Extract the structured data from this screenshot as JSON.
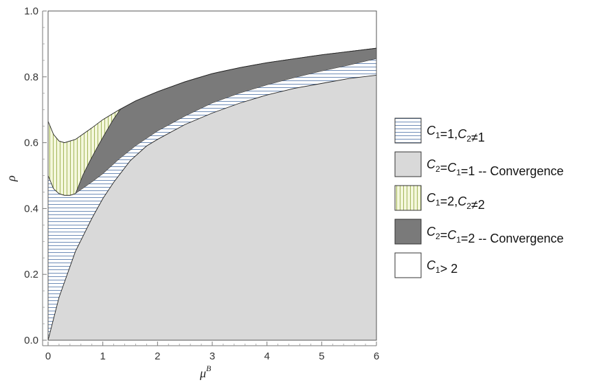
{
  "chart_data": {
    "type": "area",
    "title": "",
    "xlabel": "μ",
    "xlabel_sup": "B",
    "ylabel": "ρ",
    "xlim": [
      0,
      6
    ],
    "ylim": [
      0,
      1
    ],
    "x_ticks": [
      "0",
      "1",
      "2",
      "3",
      "4",
      "5",
      "6"
    ],
    "y_ticks": [
      "0.0",
      "0.2",
      "0.4",
      "0.6",
      "0.8",
      "1.0"
    ],
    "grid": false,
    "legend_position": "right",
    "colors": {
      "c1_only_lines": "#4a6fa5",
      "convergence_1": "#d9d9d9",
      "c1_2_lines": "#8fa63a",
      "c1_2_bg": "#f4f7dc",
      "convergence_2": "#7a7a7a",
      "c1_gt_2": "#ffffff"
    },
    "series": [
      {
        "key": "conv1_boundary",
        "x": [
          0,
          0.2,
          0.5,
          0.8,
          1.0,
          1.2,
          1.5,
          1.8,
          2.0,
          2.5,
          3.0,
          3.5,
          4.0,
          4.5,
          5.0,
          5.5,
          6.0
        ],
        "y": [
          0.0,
          0.13,
          0.27,
          0.37,
          0.43,
          0.48,
          0.545,
          0.59,
          0.61,
          0.655,
          0.69,
          0.72,
          0.745,
          0.765,
          0.78,
          0.795,
          0.805
        ]
      },
      {
        "key": "c1_1_upper",
        "x": [
          0,
          0.1,
          0.2,
          0.3,
          0.4,
          0.5
        ],
        "y": [
          0.5,
          0.46,
          0.445,
          0.44,
          0.44,
          0.445
        ]
      },
      {
        "key": "c1_2_upper",
        "x": [
          0,
          0.1,
          0.2,
          0.3,
          0.5,
          0.8,
          1.0,
          1.3,
          1.6,
          2.0,
          2.5,
          3.0,
          3.5,
          4.0,
          4.5,
          5.0,
          5.5,
          6.0
        ],
        "y": [
          0.665,
          0.625,
          0.605,
          0.6,
          0.61,
          0.645,
          0.67,
          0.7,
          0.727,
          0.755,
          0.785,
          0.81,
          0.828,
          0.843,
          0.855,
          0.867,
          0.877,
          0.887
        ]
      },
      {
        "key": "conv2_lower",
        "x": [
          0.5,
          0.8,
          1.0,
          1.3,
          1.6,
          2.0,
          2.5,
          3.0,
          3.5,
          4.0,
          4.5,
          5.0,
          5.5,
          6.0
        ],
        "y": [
          0.445,
          0.48,
          0.505,
          0.55,
          0.59,
          0.635,
          0.68,
          0.72,
          0.75,
          0.775,
          0.797,
          0.817,
          0.835,
          0.855
        ]
      }
    ],
    "legend": [
      {
        "key": "c1_only",
        "parts": [
          {
            "t": "C",
            "i": true
          },
          {
            "t": "1",
            "sub": true
          },
          {
            "t": "=1,"
          },
          {
            "t": "C",
            "i": true
          },
          {
            "t": "2",
            "sub": true
          },
          {
            "t": "≠1"
          }
        ]
      },
      {
        "key": "conv1",
        "parts": [
          {
            "t": "C",
            "i": true
          },
          {
            "t": "2",
            "sub": true
          },
          {
            "t": "="
          },
          {
            "t": "C",
            "i": true
          },
          {
            "t": "1",
            "sub": true
          },
          {
            "t": "=1 -- Convergence"
          }
        ]
      },
      {
        "key": "c1_2",
        "parts": [
          {
            "t": "C",
            "i": true
          },
          {
            "t": "1",
            "sub": true
          },
          {
            "t": "=2,"
          },
          {
            "t": "C",
            "i": true
          },
          {
            "t": "2",
            "sub": true
          },
          {
            "t": "≠2"
          }
        ]
      },
      {
        "key": "conv2",
        "parts": [
          {
            "t": "C",
            "i": true
          },
          {
            "t": "2",
            "sub": true
          },
          {
            "t": "="
          },
          {
            "t": "C",
            "i": true
          },
          {
            "t": "1",
            "sub": true
          },
          {
            "t": "=2 -- Convergence"
          }
        ]
      },
      {
        "key": "c1_gt2",
        "parts": [
          {
            "t": "C",
            "i": true
          },
          {
            "t": "1",
            "sub": true
          },
          {
            "t": "> 2"
          }
        ]
      }
    ]
  }
}
